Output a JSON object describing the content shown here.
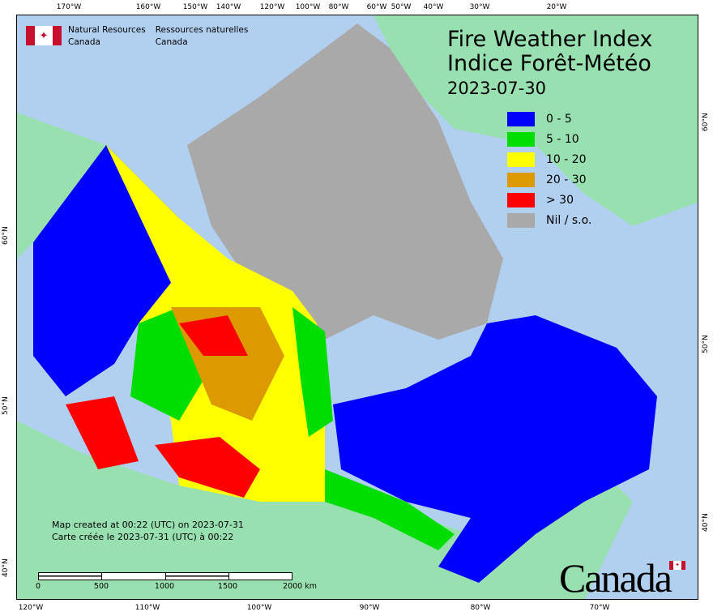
{
  "axes": {
    "top": [
      "170°W",
      "160°W",
      "150°W",
      "140°W",
      "120°W",
      "100°W",
      "80°W",
      "60°W",
      "50°W",
      "40°W",
      "30°W",
      "20°W"
    ],
    "bottom": [
      "120°W",
      "110°W",
      "100°W",
      "90°W",
      "80°W",
      "70°W"
    ],
    "left": [
      "60°N",
      "50°N",
      "40°N"
    ],
    "right": [
      "60°N",
      "50°N",
      "40°N"
    ]
  },
  "org": {
    "en_line1": "Natural Resources",
    "en_line2": "Canada",
    "fr_line1": "Ressources naturelles",
    "fr_line2": "Canada"
  },
  "title": {
    "en": "Fire Weather Index",
    "fr": "Indice Forêt-Météo",
    "date": "2023-07-30"
  },
  "legend": [
    {
      "label": "0 - 5",
      "color": "#0000ff"
    },
    {
      "label": "5 - 10",
      "color": "#00dd00"
    },
    {
      "label": "10 - 20",
      "color": "#ffff00"
    },
    {
      "label": "20 - 30",
      "color": "#dd9900"
    },
    {
      "label": "> 30",
      "color": "#ff0000"
    },
    {
      "label": "Nil / s.o.",
      "color": "#a9a9a9"
    }
  ],
  "created": {
    "en": "Map created at 00:22 (UTC) on 2023-07-31",
    "fr": "Carte créée le 2023-07-31 (UTC) à 00:22"
  },
  "scale": {
    "labels": [
      "0",
      "500",
      "1000",
      "1500",
      "2000  km"
    ]
  },
  "wordmark": "Canada",
  "colors": {
    "ocean": "#b1d0f0",
    "land": "#98e0b0"
  }
}
